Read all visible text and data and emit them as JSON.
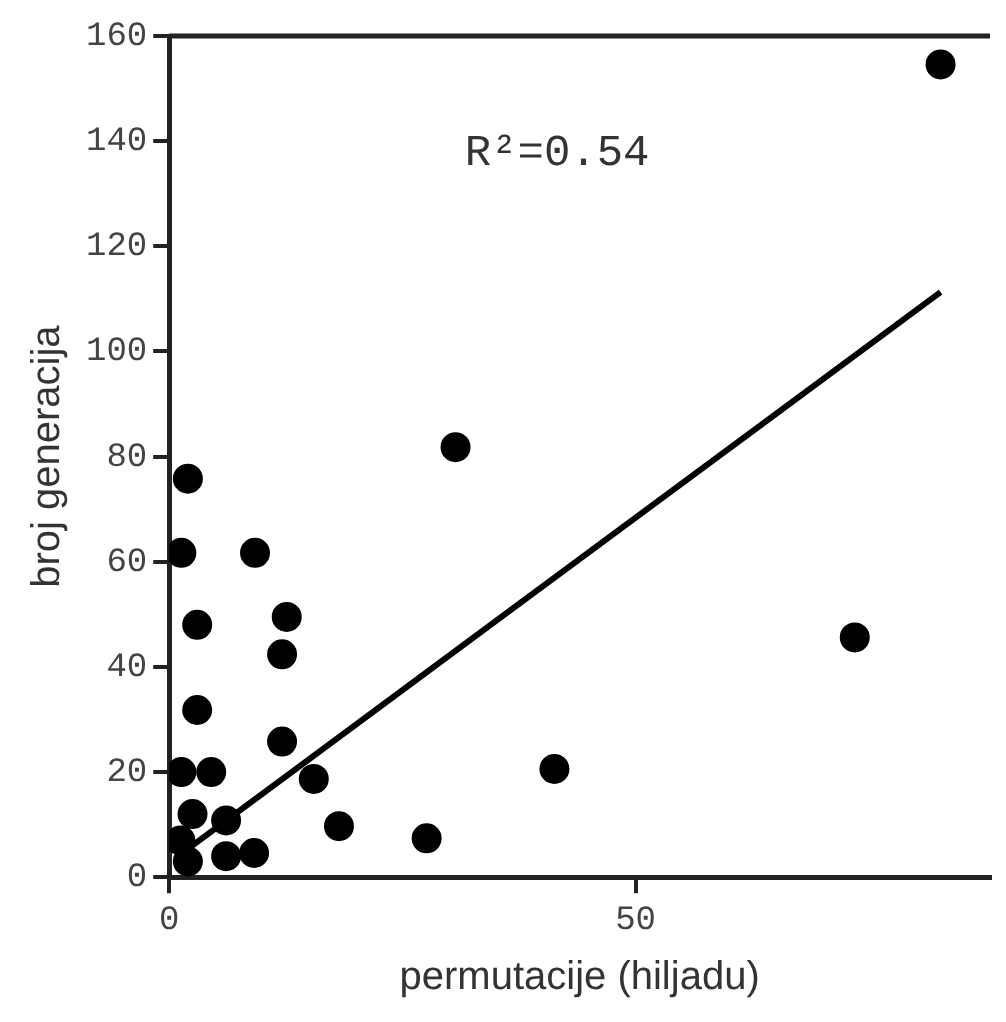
{
  "chart_data": {
    "type": "scatter",
    "xlabel": "permutacije (hiljadu)",
    "ylabel": "broj generacija",
    "annotations": [
      "R²=0.54"
    ],
    "xlim": [
      0,
      88
    ],
    "xticks": [
      0,
      50
    ],
    "ylim": [
      0,
      160
    ],
    "yticks": [
      0,
      20,
      40,
      60,
      80,
      100,
      120,
      140,
      160
    ],
    "grid": false,
    "legend": false,
    "marker": "circle",
    "series": [
      {
        "color": "#000000",
        "x": [
          82.7,
          30.7,
          2,
          1.3,
          9.2,
          73.5,
          41.3,
          27.6,
          3,
          12.6,
          12.1,
          3,
          12.1,
          1.3,
          4.5,
          15.5,
          6.1,
          18.2,
          6.1,
          9.1,
          2,
          2.5,
          1.2
        ],
        "values": [
          154.6,
          81.8,
          75.8,
          61.7,
          61.7,
          45.6,
          20.6,
          7.4,
          48,
          49.5,
          42.4,
          31.8,
          25.8,
          20,
          20,
          18.7,
          10.8,
          9.7,
          4,
          4.6,
          3,
          12,
          7
        ]
      },
      {
        "type": "line",
        "color": "#000000",
        "marker": "none",
        "x": [
          2.4,
          82.7
        ],
        "values": [
          5.9,
          111.3
        ]
      }
    ]
  }
}
